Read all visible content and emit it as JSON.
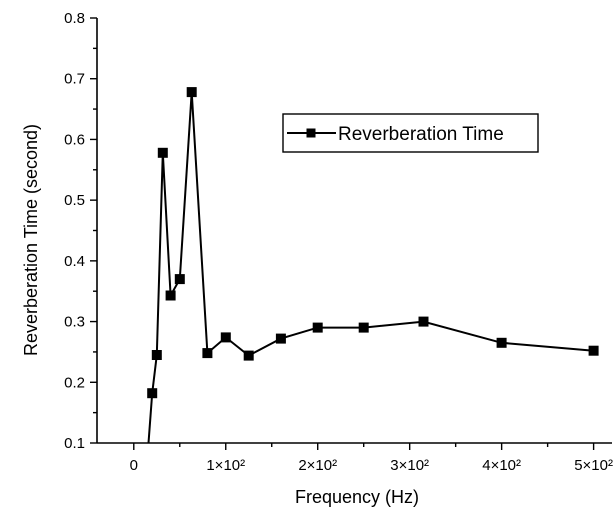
{
  "chart_data": {
    "type": "line",
    "xlabel": "Frequency (Hz)",
    "ylabel": "Reverberation Time (second)",
    "xlim": [
      -40,
      520
    ],
    "ylim": [
      0.1,
      0.8
    ],
    "x_ticks": [
      0,
      100,
      200,
      300,
      400,
      500
    ],
    "x_tick_labels": [
      "0",
      "1×10²",
      "2×10²",
      "3×10²",
      "4×10²",
      "5×10²"
    ],
    "y_ticks": [
      0.1,
      0.2,
      0.3,
      0.4,
      0.5,
      0.6,
      0.7,
      0.8
    ],
    "y_tick_labels": [
      "0.1",
      "0.2",
      "0.3",
      "0.4",
      "0.5",
      "0.6",
      "0.7",
      "0.8"
    ],
    "grid": false,
    "legend_position": "top-right",
    "series": [
      {
        "name": "Reverberation Time",
        "marker": "square",
        "color": "#000000",
        "line_start": [
          16,
          0.1
        ],
        "x": [
          20,
          25,
          31.5,
          40,
          50,
          63,
          80,
          100,
          125,
          160,
          200,
          250,
          315,
          400,
          500
        ],
        "y": [
          0.182,
          0.245,
          0.578,
          0.343,
          0.37,
          0.678,
          0.248,
          0.274,
          0.244,
          0.272,
          0.29,
          0.29,
          0.3,
          0.265,
          0.252
        ]
      }
    ]
  }
}
